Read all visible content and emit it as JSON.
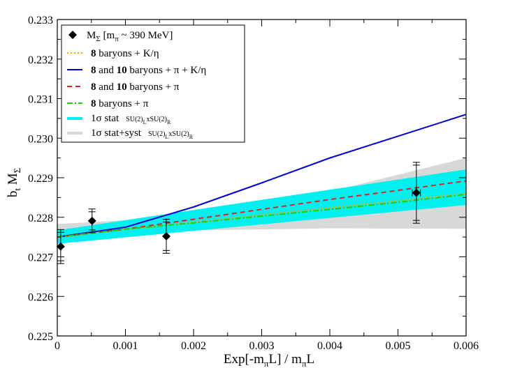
{
  "chart_data": {
    "type": "scatter",
    "xlabel": "Exp[-m_πL] / m_πL",
    "ylabel": "b_t M_Σ",
    "xlim": [
      0,
      0.006
    ],
    "ylim": [
      0.225,
      0.233
    ],
    "xticks": [
      "0",
      "0.001",
      "0.002",
      "0.003",
      "0.004",
      "0.005",
      "0.006"
    ],
    "yticks": [
      "0.225",
      "0.226",
      "0.227",
      "0.228",
      "0.229",
      "0.230",
      "0.231",
      "0.232",
      "0.233"
    ],
    "grid": false,
    "legend_position": "top-left",
    "points": {
      "name": "M_Σ [m_π ~ 390 MeV]",
      "color": "#000000",
      "data": [
        {
          "x": 5e-05,
          "y": 0.22726,
          "err": 0.00043,
          "xerr": 0
        },
        {
          "x": 0.00051,
          "y": 0.22791,
          "err": 0.0003,
          "xerr": 0
        },
        {
          "x": 0.0016,
          "y": 0.22752,
          "err": 0.00043,
          "xerr": 0
        },
        {
          "x": 0.00527,
          "y": 0.22862,
          "err": 0.00077,
          "xerr": 6e-05
        }
      ]
    },
    "series": [
      {
        "name": "8 baryons + K/η",
        "style": "dotted",
        "color": "#ffa500",
        "x": [
          0,
          0.001,
          0.002,
          0.003,
          0.004,
          0.005,
          0.006
        ],
        "y": [
          0.22752,
          0.2277,
          0.22788,
          0.22806,
          0.22824,
          0.22842,
          0.2286
        ]
      },
      {
        "name": "8 and 10 baryons + π + K/η",
        "style": "solid",
        "color": "#0000cc",
        "x": [
          0,
          0.001,
          0.002,
          0.003,
          0.004,
          0.005,
          0.006
        ],
        "y": [
          0.2275,
          0.22775,
          0.22826,
          0.22887,
          0.2295,
          0.23005,
          0.2306
        ]
      },
      {
        "name": "8 and 10 baryons + π",
        "style": "dashed",
        "color": "#dd2222",
        "x": [
          0,
          0.001,
          0.002,
          0.003,
          0.004,
          0.005,
          0.006
        ],
        "y": [
          0.2275,
          0.2277,
          0.22795,
          0.2282,
          0.22845,
          0.22868,
          0.22892
        ]
      },
      {
        "name": "8 baryons + π",
        "style": "dashdot",
        "color": "#22cc00",
        "x": [
          0,
          0.001,
          0.002,
          0.003,
          0.004,
          0.005,
          0.006
        ],
        "y": [
          0.2275,
          0.2277,
          0.22786,
          0.22803,
          0.2282,
          0.22838,
          0.22858
        ]
      }
    ],
    "bands": [
      {
        "name": "1σ stat SU(2)_L x SU(2)_R",
        "color": "#00f0f0",
        "x": [
          0,
          0.006
        ],
        "lower": [
          0.22733,
          0.22831
        ],
        "upper": [
          0.22767,
          0.22921
        ]
      },
      {
        "name": "1σ stat+syst SU(2)_L x SU(2)_R",
        "color": "#d8d8d8",
        "x": [
          0,
          0.002,
          0.004,
          0.006
        ],
        "lower": [
          0.22733,
          0.22767,
          0.22772,
          0.22771
        ],
        "upper": [
          0.22783,
          0.22802,
          0.22865,
          0.2295
        ]
      }
    ]
  },
  "legend": {
    "points_label": "M",
    "points_label_sub": "Σ",
    "points_label_rest": " [m",
    "points_label_sub2": "π",
    "points_label_end": " ~ 390 MeV]",
    "l1_bold": "8",
    "l1_rest": " baryons + K/η",
    "l2_bold1": "8",
    "l2_mid": " and ",
    "l2_bold2": "10",
    "l2_rest": " baryons + π + K/η",
    "l3_bold1": "8",
    "l3_mid": " and ",
    "l3_bold2": "10",
    "l3_rest": " baryons + π",
    "l4_bold": "8",
    "l4_rest": "  baryons + π",
    "l5_main": "1σ stat",
    "l5_su1": "SU(2)",
    "l5_sub1": "L",
    "l5_x": "xSU(2)",
    "l5_sub2": "R",
    "l6_main": "1σ stat+syst",
    "l6_su1": "SU(2)",
    "l6_sub1": "L",
    "l6_x": "xSU(2)",
    "l6_sub2": "R"
  },
  "axis_titles": {
    "x_main": "Exp[-m",
    "x_sub": "π",
    "x_rest": "L] / m",
    "x_sub2": "π",
    "x_end": "L",
    "y_main": "b",
    "y_sub": "t",
    "y_mid": " M",
    "y_sub2": "Σ"
  }
}
